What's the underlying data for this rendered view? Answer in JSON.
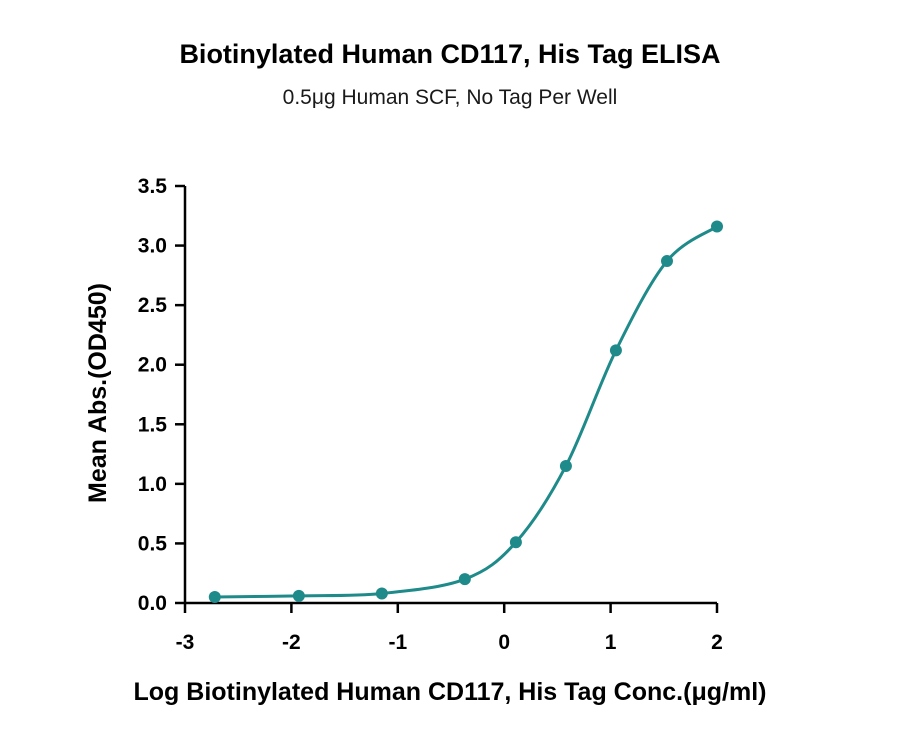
{
  "chart_data": {
    "type": "scatter",
    "title": "Biotinylated Human CD117, His Tag ELISA",
    "subtitle": "0.5μg Human SCF, No Tag Per Well",
    "xlabel": "Log Biotinylated Human CD117, His Tag Conc.(μg/ml)",
    "ylabel": "Mean Abs.(OD450)",
    "xlim": [
      -3,
      2
    ],
    "ylim": [
      0,
      3.5
    ],
    "x_ticks": [
      -3,
      -2,
      -1,
      0,
      1,
      2
    ],
    "x_tick_labels": [
      "-3",
      "-2",
      "-1",
      "0",
      "1",
      "2"
    ],
    "y_ticks": [
      0,
      0.5,
      1,
      1.5,
      2,
      2.5,
      3,
      3.5
    ],
    "y_tick_labels": [
      "0.0",
      "0.5",
      "1.0",
      "1.5",
      "2.0",
      "2.5",
      "3.0",
      "3.5"
    ],
    "grid": false,
    "legend": "none",
    "color": "#1f8a8a",
    "fit": "sigmoidal",
    "series": [
      {
        "x": [
          -2.72,
          -1.93,
          -1.15,
          -0.37,
          0.11,
          0.58,
          1.05,
          1.53,
          2.0
        ],
        "y": [
          0.05,
          0.06,
          0.08,
          0.2,
          0.51,
          1.15,
          2.12,
          2.87,
          3.16
        ]
      }
    ]
  }
}
